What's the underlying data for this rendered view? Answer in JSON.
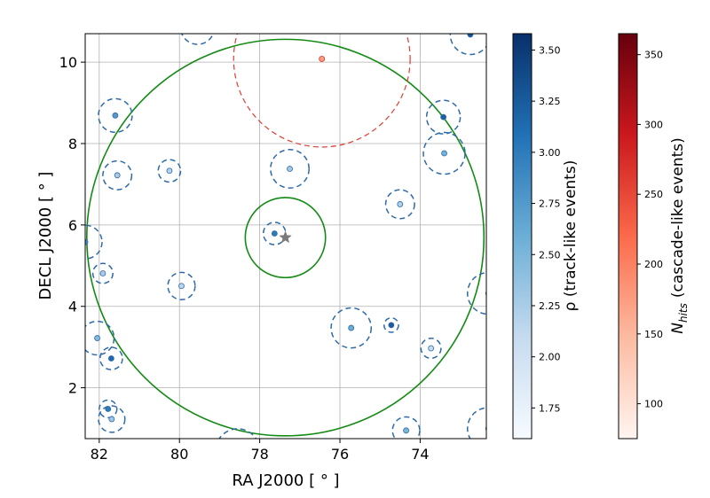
{
  "chart_data": {
    "type": "scatter",
    "xlabel": "RA J2000 [$^\\circ$]",
    "xlabel_text": "RA J2000 [ ° ]",
    "ylabel_text": "DECL J2000 [ ° ]",
    "xlim": [
      82.35,
      72.35
    ],
    "ylim": [
      0.75,
      10.7
    ],
    "x_inverted": true,
    "grid": true,
    "x_ticks": [
      82,
      80,
      78,
      76,
      74
    ],
    "y_ticks": [
      2,
      4,
      6,
      8,
      10
    ],
    "x_tick_labels": [
      "82",
      "80",
      "78",
      "76",
      "74"
    ],
    "y_tick_labels": [
      "2",
      "4",
      "6",
      "8",
      "10"
    ],
    "source": {
      "ra": 77.36,
      "dec": 5.69,
      "marker": "star",
      "color": "#7a7a7a"
    },
    "green_circles": [
      {
        "ra": 77.36,
        "dec": 5.69,
        "radius": 1.0,
        "color": "#138a13"
      },
      {
        "ra": 77.36,
        "dec": 5.69,
        "radius": 4.95,
        "color": "#138a13"
      }
    ],
    "track_events": [
      {
        "ra": 82.35,
        "dec": 5.58,
        "radius": 0.42,
        "rho": 2.85
      },
      {
        "ra": 81.91,
        "dec": 4.81,
        "radius": 0.25,
        "rho": 2.25
      },
      {
        "ra": 82.05,
        "dec": 3.22,
        "radius": 0.42,
        "rho": 2.45
      },
      {
        "ra": 81.7,
        "dec": 2.72,
        "radius": 0.28,
        "rho": 3.15
      },
      {
        "ra": 81.78,
        "dec": 1.48,
        "radius": 0.22,
        "rho": 3.0
      },
      {
        "ra": 81.69,
        "dec": 1.23,
        "radius": 0.33,
        "rho": 2.3
      },
      {
        "ra": 81.6,
        "dec": 8.69,
        "radius": 0.42,
        "rho": 2.75
      },
      {
        "ra": 81.55,
        "dec": 7.22,
        "radius": 0.36,
        "rho": 2.25
      },
      {
        "ra": 80.25,
        "dec": 7.33,
        "radius": 0.28,
        "rho": 2.2
      },
      {
        "ra": 79.95,
        "dec": 4.5,
        "radius": 0.34,
        "rho": 2.15
      },
      {
        "ra": 79.55,
        "dec": 10.85,
        "radius": 0.42,
        "rho": 2.5
      },
      {
        "ra": 78.55,
        "dec": 0.45,
        "radius": 0.55,
        "rho": 2.4
      },
      {
        "ra": 77.63,
        "dec": 5.79,
        "radius": 0.28,
        "rho": 3.0
      },
      {
        "ra": 77.25,
        "dec": 7.38,
        "radius": 0.48,
        "rho": 2.3
      },
      {
        "ra": 75.72,
        "dec": 3.47,
        "radius": 0.5,
        "rho": 2.6
      },
      {
        "ra": 74.72,
        "dec": 3.54,
        "radius": 0.18,
        "rho": 3.25
      },
      {
        "ra": 74.5,
        "dec": 6.51,
        "radius": 0.36,
        "rho": 2.2
      },
      {
        "ra": 74.35,
        "dec": 0.95,
        "radius": 0.34,
        "rho": 2.5
      },
      {
        "ra": 73.73,
        "dec": 2.97,
        "radius": 0.25,
        "rho": 2.1
      },
      {
        "ra": 73.42,
        "dec": 8.65,
        "radius": 0.42,
        "rho": 3.2
      },
      {
        "ra": 73.4,
        "dec": 7.76,
        "radius": 0.52,
        "rho": 2.55
      },
      {
        "ra": 72.75,
        "dec": 10.68,
        "radius": 0.5,
        "rho": 3.3
      },
      {
        "ra": 72.3,
        "dec": 4.32,
        "radius": 0.52,
        "rho": 2.4
      },
      {
        "ra": 72.3,
        "dec": 1.0,
        "radius": 0.52,
        "rho": 2.4
      }
    ],
    "cascade_events": [
      {
        "ra": 76.45,
        "dec": 10.08,
        "radius": 2.2,
        "nhits": 170
      }
    ],
    "colorbars": [
      {
        "label_text": "ρ (track-like events)",
        "range": [
          1.6,
          3.58
        ],
        "ticks": [
          1.75,
          2.0,
          2.25,
          2.5,
          2.75,
          3.0,
          3.25,
          3.5
        ],
        "tick_labels": [
          "1.75",
          "2.00",
          "2.25",
          "2.50",
          "2.75",
          "3.00",
          "3.25",
          "3.50"
        ],
        "cmap": [
          "#f7fbff",
          "#c6dbef",
          "#6baed6",
          "#2171b5",
          "#08306b"
        ]
      },
      {
        "label_text": "N",
        "label_sub": "hits",
        "label_rest": "(cascade-like events)",
        "range": [
          75,
          365
        ],
        "ticks": [
          100,
          150,
          200,
          250,
          300,
          350
        ],
        "tick_labels": [
          "100",
          "150",
          "200",
          "250",
          "300",
          "350"
        ],
        "cmap": [
          "#fff5f0",
          "#fcbba1",
          "#fb6a4a",
          "#cb181d",
          "#67000d"
        ]
      }
    ]
  }
}
